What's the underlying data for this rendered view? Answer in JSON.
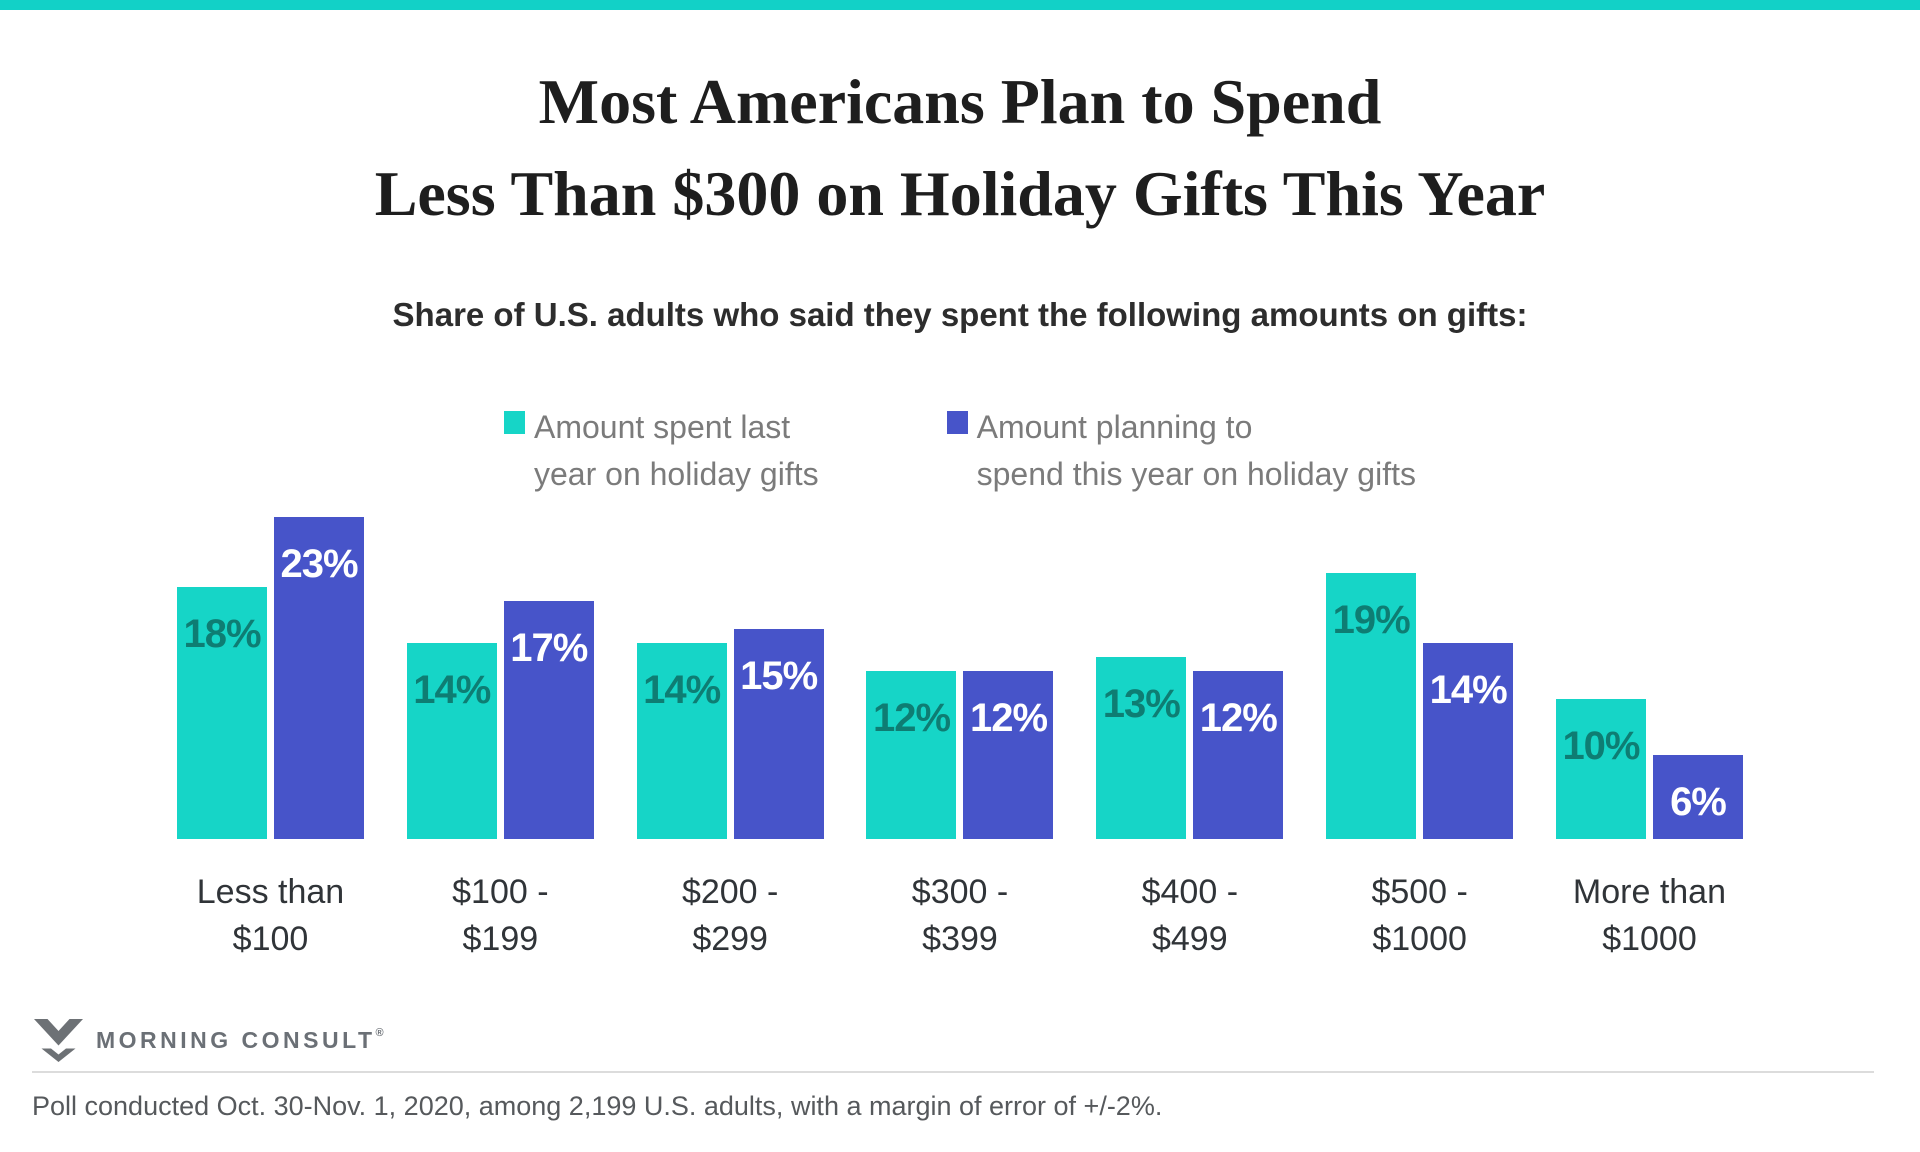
{
  "colors": {
    "accent_teal": "#12d1c7",
    "bar_teal": "#16d5c7",
    "bar_blue": "#4754c9",
    "teal_value_label": "#0e7d73",
    "blue_value_label": "#ffffff"
  },
  "header": {
    "title_lines": [
      "Most Americans Plan to Spend",
      "Less Than $300 on Holiday Gifts This Year"
    ],
    "subtitle": "Share of U.S. adults who said they spent the following amounts on gifts:"
  },
  "legend": {
    "items": [
      {
        "color": "#16d5c7",
        "label_lines": [
          "Amount spent last",
          "year on holiday gifts"
        ]
      },
      {
        "color": "#4754c9",
        "label_lines": [
          "Amount planning to",
          "spend this year on holiday gifts"
        ]
      }
    ]
  },
  "chart_data": {
    "type": "bar",
    "categories": [
      "Less than $100",
      "$100 - $199",
      "$200 - $299",
      "$300 - $399",
      "$400 - $499",
      "$500 - $1000",
      "More than $1000"
    ],
    "tick_labels": [
      [
        "Less than",
        "$100"
      ],
      [
        "$100 -",
        "$199"
      ],
      [
        "$200 -",
        "$299"
      ],
      [
        "$300 -",
        "$399"
      ],
      [
        "$400 -",
        "$499"
      ],
      [
        "$500 -",
        "$1000"
      ],
      [
        "More than",
        "$1000"
      ]
    ],
    "series": [
      {
        "name": "Amount spent last year on holiday gifts",
        "color": "#16d5c7",
        "label_color": "#0e7d73",
        "values": [
          18,
          14,
          14,
          12,
          13,
          19,
          10
        ]
      },
      {
        "name": "Amount planning to spend this year on holiday gifts",
        "color": "#4754c9",
        "label_color": "#ffffff",
        "values": [
          23,
          17,
          15,
          12,
          12,
          14,
          6
        ]
      }
    ],
    "value_suffix": "%",
    "ylim": [
      0,
      25
    ],
    "grid": false,
    "legend_position": "top",
    "title": "Most Americans Plan to Spend Less Than $300 on Holiday Gifts This Year"
  },
  "footer": {
    "logo_text": "MORNING CONSULT",
    "reg_mark": "®",
    "note": "Poll conducted Oct. 30-Nov. 1, 2020, among 2,199 U.S. adults, with a margin of error of +/-2%."
  }
}
